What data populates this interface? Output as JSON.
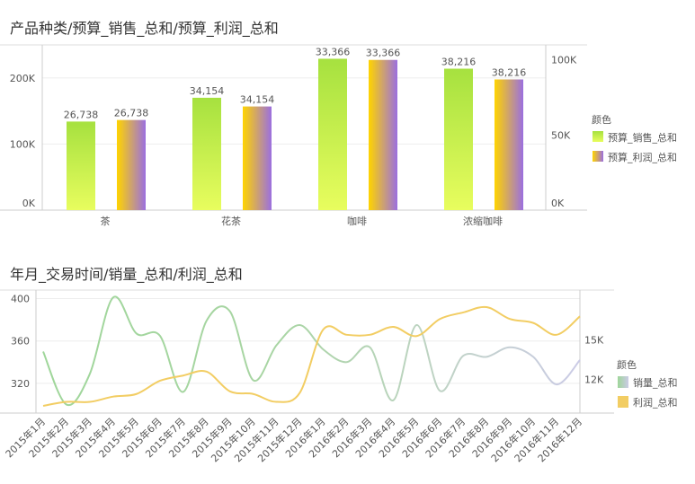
{
  "chart_data": [
    {
      "type": "bar",
      "title": "产品种类/预算_销售_总和/预算_利润_总和",
      "categories": [
        "茶",
        "花茶",
        "咖啡",
        "浓缩咖啡"
      ],
      "series": [
        {
          "name": "预算_销售_总和",
          "axis": "left",
          "values": [
            134000,
            170000,
            229000,
            214000
          ],
          "labels": [
            "26,738",
            "34,154",
            "33,366",
            "38,216"
          ],
          "colors": [
            "#a6e13f",
            "#e8fd5e"
          ]
        },
        {
          "name": "预算_利润_总和",
          "axis": "right",
          "values": [
            60000,
            69000,
            100000,
            87000
          ],
          "labels": [
            "26,738",
            "34,154",
            "33,366",
            "38,216"
          ],
          "colors": [
            "#ffd400",
            "#9b6fe0"
          ]
        }
      ],
      "left_axis": {
        "ticks": [
          "0K",
          "100K",
          "200K"
        ],
        "tick_values": [
          0,
          100000,
          200000
        ],
        "range": [
          0,
          250000
        ]
      },
      "right_axis": {
        "ticks": [
          "0K",
          "50K",
          "100K"
        ],
        "tick_values": [
          0,
          50000,
          100000
        ],
        "range": [
          0,
          110000
        ]
      },
      "legend": {
        "title": "颜色",
        "placement": "right"
      },
      "grid": true
    },
    {
      "type": "line",
      "title": "年月_交易时间/销量_总和/利润_总和",
      "categories": [
        "2015年1月",
        "2015年2月",
        "2015年3月",
        "2015年4月",
        "2015年5月",
        "2015年6月",
        "2015年7月",
        "2015年8月",
        "2015年9月",
        "2015年10月",
        "2015年11月",
        "2015年12月",
        "2016年1月",
        "2016年2月",
        "2016年3月",
        "2016年4月",
        "2016年5月",
        "2016年6月",
        "2016年7月",
        "2016年8月",
        "2016年9月",
        "2016年10月",
        "2016年11月",
        "2016年12月"
      ],
      "series": [
        {
          "name": "销量_总和",
          "axis": "left",
          "values": [
            350,
            300,
            329,
            401,
            367,
            365,
            312,
            379,
            388,
            323,
            356,
            375,
            352,
            340,
            354,
            304,
            375,
            313,
            346,
            345,
            354,
            345,
            319,
            342
          ],
          "colors": [
            "#9fd69a",
            "#c0d3c6",
            "#cbcbe6"
          ]
        },
        {
          "name": "利润_总和",
          "axis": "right",
          "values": [
            10000,
            10300,
            10300,
            10700,
            10900,
            11900,
            12300,
            12600,
            11100,
            10900,
            10300,
            11000,
            15800,
            15400,
            15400,
            16000,
            15300,
            16600,
            17100,
            17500,
            16600,
            16300,
            15400,
            16800
          ],
          "colors": [
            "#f2cd63"
          ]
        }
      ],
      "left_axis": {
        "ticks": [
          "320",
          "360",
          "400"
        ],
        "tick_values": [
          320,
          360,
          400
        ],
        "range": [
          292,
          408
        ]
      },
      "right_axis": {
        "ticks": [
          "12K",
          "15K"
        ],
        "tick_values": [
          12000,
          15000
        ],
        "range": [
          9450,
          18800
        ]
      },
      "legend": {
        "title": "颜色",
        "placement": "right"
      },
      "grid": true
    }
  ]
}
